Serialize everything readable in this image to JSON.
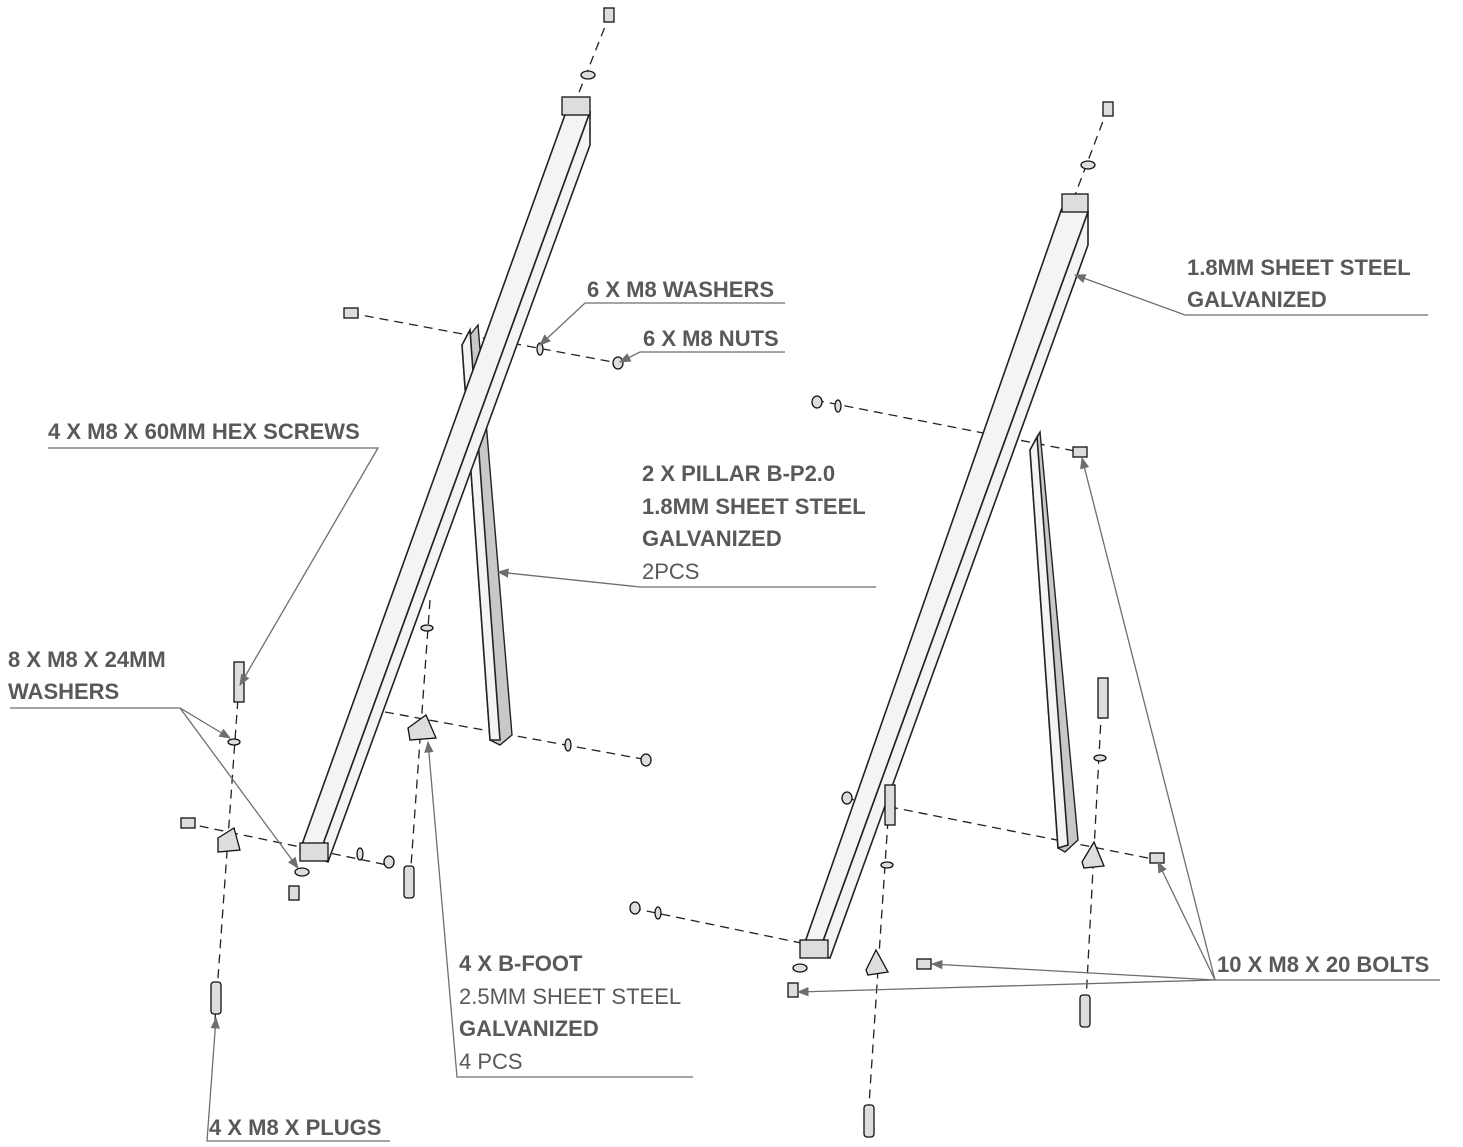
{
  "labels": [
    {
      "lines": [
        "6 X M8 WASHERS"
      ]
    },
    {
      "lines": [
        "6 X M8 NUTS"
      ]
    },
    {
      "lines": [
        "4 X M8 X 60MM HEX SCREWS"
      ]
    },
    {
      "lines": [
        "2 X PILLAR B-P2.0",
        "1.8MM SHEET STEEL",
        "GALVANIZED",
        "2PCS"
      ]
    },
    {
      "lines": [
        "8 X M8 X 24MM",
        "WASHERS"
      ]
    },
    {
      "lines": [
        "4 X B-FOOT",
        "2.5MM SHEET STEEL",
        "GALVANIZED",
        "4 PCS"
      ]
    },
    {
      "lines": [
        "4 X M8 X PLUGS"
      ]
    },
    {
      "lines": [
        "1.8MM SHEET STEEL",
        "GALVANIZED"
      ]
    },
    {
      "lines": [
        "10 X M8 X 20 BOLTS"
      ]
    }
  ]
}
